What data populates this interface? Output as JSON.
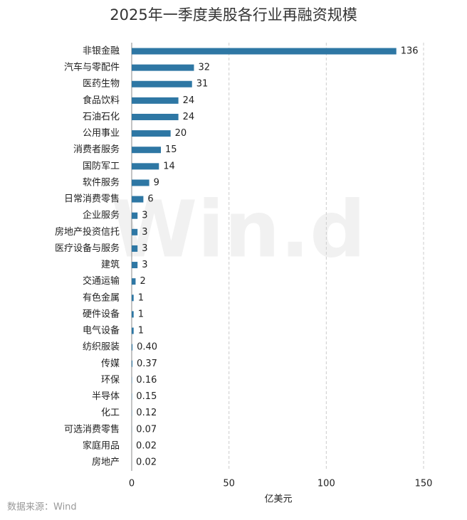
{
  "chart_data": {
    "type": "hbar",
    "title": "2025年一季度美股各行业再融资规模",
    "categories": [
      "非银金融",
      "汽车与零配件",
      "医药生物",
      "食品饮料",
      "石油石化",
      "公用事业",
      "消费者服务",
      "国防军工",
      "软件服务",
      "日常消费零售",
      "企业服务",
      "房地产投资信托",
      "医疗设备与服务",
      "建筑",
      "交通运输",
      "有色金属",
      "硬件设备",
      "电气设备",
      "纺织服装",
      "传媒",
      "环保",
      "半导体",
      "化工",
      "可选消费零售",
      "家庭用品",
      "房地产"
    ],
    "values": [
      136,
      32,
      31,
      24,
      24,
      20,
      15,
      14,
      9,
      6,
      3,
      3,
      3,
      3,
      2,
      1,
      1,
      1,
      0.4,
      0.37,
      0.16,
      0.15,
      0.12,
      0.07,
      0.02,
      0.02
    ],
    "value_labels": [
      "136",
      "32",
      "31",
      "24",
      "24",
      "20",
      "15",
      "14",
      "9",
      "6",
      "3",
      "3",
      "3",
      "3",
      "2",
      "1",
      "1",
      "1",
      "0.40",
      "0.37",
      "0.16",
      "0.15",
      "0.12",
      "0.07",
      "0.02",
      "0.02"
    ],
    "color": "#2e77a4",
    "xlim": [
      0,
      150
    ],
    "xticks": [
      0,
      50,
      100,
      150
    ],
    "grid": true,
    "xlabel": "亿美元",
    "source": "数据来源：Wind",
    "watermark": "Win.d"
  }
}
